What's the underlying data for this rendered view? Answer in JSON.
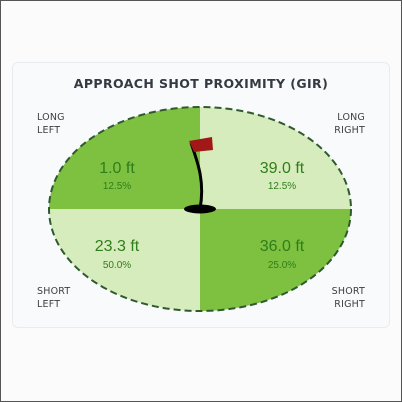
{
  "title": "APPROACH SHOT PROXIMITY (GIR)",
  "colors": {
    "dark_green": "#7ec140",
    "light_green": "#d6ecbd",
    "value_text": "#2f7d1b",
    "outline": "#2f5a2f",
    "flag": "#a01818"
  },
  "quadrants": {
    "long_left": {
      "label_line1": "LONG",
      "label_line2": "LEFT",
      "distance": "1.0 ft",
      "percent": "12.5%"
    },
    "long_right": {
      "label_line1": "LONG",
      "label_line2": "RIGHT",
      "distance": "39.0 ft",
      "percent": "12.5%"
    },
    "short_left": {
      "label_line1": "SHORT",
      "label_line2": "LEFT",
      "distance": "23.3 ft",
      "percent": "50.0%"
    },
    "short_right": {
      "label_line1": "SHORT",
      "label_line2": "RIGHT",
      "distance": "36.0 ft",
      "percent": "25.0%"
    }
  }
}
